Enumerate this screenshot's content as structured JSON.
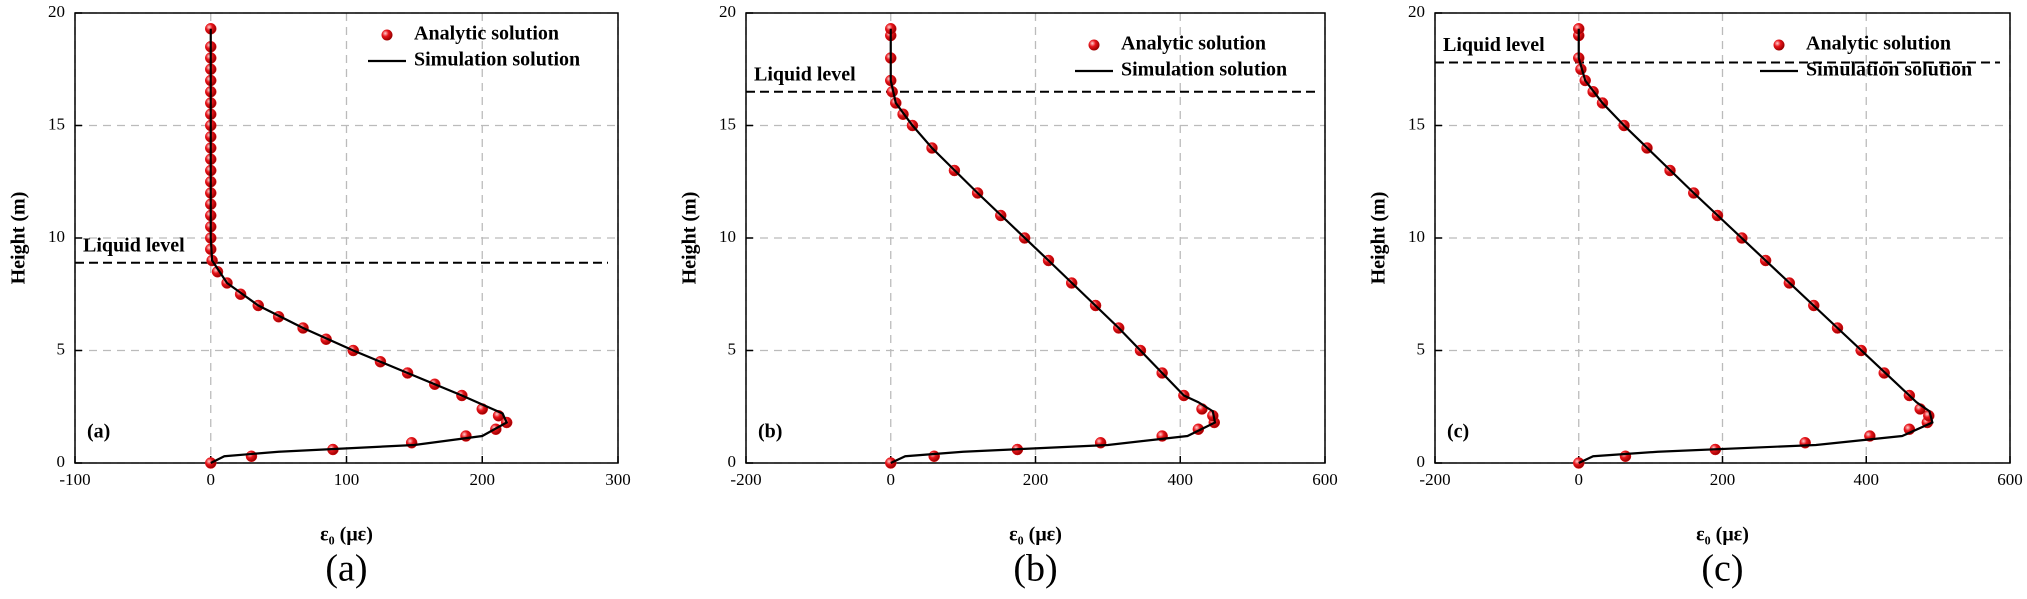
{
  "chart_data": [
    {
      "type": "scatter",
      "label": "(a)",
      "caption": "(a)",
      "x_label": "ε₀ (με)",
      "y_label": "Height (m)",
      "xlim": [
        -100,
        300
      ],
      "xticks": [
        -100,
        0,
        100,
        200,
        300
      ],
      "ylim": [
        0,
        20
      ],
      "yticks": [
        0,
        5,
        10,
        15,
        20
      ],
      "grid": true,
      "legend": "upper right",
      "annotation": {
        "text": "Liquid level",
        "value": 8.9
      },
      "series": [
        {
          "name": "Analytic solution",
          "color": "#e8141a",
          "kind": "markers",
          "x": [
            0,
            30,
            90,
            148,
            188,
            210,
            218,
            212,
            200,
            185,
            165,
            145,
            125,
            105,
            85,
            68,
            50,
            35,
            22,
            12,
            5,
            1,
            0,
            0,
            0,
            0,
            0,
            0,
            0,
            0,
            0,
            0,
            0,
            0,
            0,
            0,
            0,
            0,
            0,
            0,
            0,
            0
          ],
          "values": [
            0,
            0.3,
            0.6,
            0.9,
            1.2,
            1.5,
            1.8,
            2.1,
            2.4,
            3,
            3.5,
            4,
            4.5,
            5,
            5.5,
            6,
            6.5,
            7,
            7.5,
            8,
            8.5,
            9,
            9.5,
            10,
            10.5,
            11,
            11.5,
            12,
            12.5,
            13,
            13.5,
            14,
            14.5,
            15,
            15.5,
            16,
            16.5,
            17,
            17.5,
            18,
            18.5,
            19.3
          ]
        },
        {
          "name": "Simulation solution",
          "color": "#000000",
          "kind": "line",
          "x": [
            0,
            10,
            50,
            150,
            200,
            218,
            215,
            200,
            185,
            145,
            105,
            68,
            35,
            12,
            1,
            0,
            0
          ],
          "values": [
            0,
            0.3,
            0.5,
            0.8,
            1.2,
            1.8,
            2.2,
            2.6,
            3,
            4,
            5,
            6,
            7,
            8,
            9,
            10,
            19.3
          ]
        }
      ]
    },
    {
      "type": "scatter",
      "label": "(b)",
      "caption": "(b)",
      "x_label": "ε₀ (με)",
      "y_label": "Height (m)",
      "xlim": [
        -200,
        600
      ],
      "xticks": [
        -200,
        0,
        200,
        400,
        600
      ],
      "ylim": [
        0,
        20
      ],
      "yticks": [
        0,
        5,
        10,
        15,
        20
      ],
      "grid": true,
      "legend": "upper right",
      "annotation": {
        "text": "Liquid level",
        "value": 16.5
      },
      "series": [
        {
          "name": "Analytic solution",
          "color": "#e8141a",
          "kind": "markers",
          "x": [
            0,
            60,
            175,
            290,
            375,
            425,
            447,
            445,
            430,
            405,
            375,
            345,
            315,
            283,
            250,
            218,
            185,
            152,
            120,
            88,
            57,
            30,
            17,
            7,
            2,
            0,
            0,
            0,
            0
          ],
          "values": [
            0,
            0.3,
            0.6,
            0.9,
            1.2,
            1.5,
            1.8,
            2.1,
            2.4,
            3,
            4,
            5,
            6,
            7,
            8,
            9,
            10,
            11,
            12,
            13,
            14,
            15,
            15.5,
            16,
            16.5,
            17,
            18,
            19,
            19.3
          ]
        },
        {
          "name": "Simulation solution",
          "color": "#000000",
          "kind": "line",
          "x": [
            0,
            20,
            100,
            300,
            410,
            448,
            445,
            425,
            405,
            315,
            218,
            120,
            57,
            30,
            7,
            0,
            0
          ],
          "values": [
            0,
            0.3,
            0.5,
            0.8,
            1.2,
            1.8,
            2.3,
            2.7,
            3,
            6,
            9,
            12,
            14,
            15,
            16,
            17,
            19.3
          ]
        }
      ]
    },
    {
      "type": "scatter",
      "label": "(c)",
      "caption": "(c)",
      "x_label": "ε₀ (με)",
      "y_label": "Height (m)",
      "xlim": [
        -200,
        600
      ],
      "xticks": [
        -200,
        0,
        200,
        400,
        600
      ],
      "ylim": [
        0,
        20
      ],
      "yticks": [
        0,
        5,
        10,
        15,
        20
      ],
      "grid": true,
      "legend": "upper right",
      "annotation": {
        "text": "Liquid level",
        "value": 17.8
      },
      "series": [
        {
          "name": "Analytic solution",
          "color": "#e8141a",
          "kind": "markers",
          "x": [
            0,
            65,
            190,
            315,
            405,
            460,
            485,
            487,
            475,
            460,
            425,
            393,
            360,
            327,
            293,
            260,
            227,
            193,
            160,
            127,
            95,
            63,
            33,
            20,
            9,
            3,
            0,
            0,
            0
          ],
          "values": [
            0,
            0.3,
            0.6,
            0.9,
            1.2,
            1.5,
            1.8,
            2.1,
            2.4,
            3,
            4,
            5,
            6,
            7,
            8,
            9,
            10,
            11,
            12,
            13,
            14,
            15,
            16,
            16.5,
            17,
            17.5,
            18,
            19,
            19.3
          ]
        },
        {
          "name": "Simulation solution",
          "color": "#000000",
          "kind": "line",
          "x": [
            0,
            20,
            110,
            330,
            450,
            492,
            488,
            470,
            460,
            360,
            260,
            160,
            63,
            33,
            9,
            0,
            0
          ],
          "values": [
            0,
            0.3,
            0.5,
            0.8,
            1.2,
            1.8,
            2.3,
            2.7,
            3,
            6,
            9,
            12,
            15,
            16,
            17,
            18,
            19.3
          ]
        }
      ]
    }
  ]
}
